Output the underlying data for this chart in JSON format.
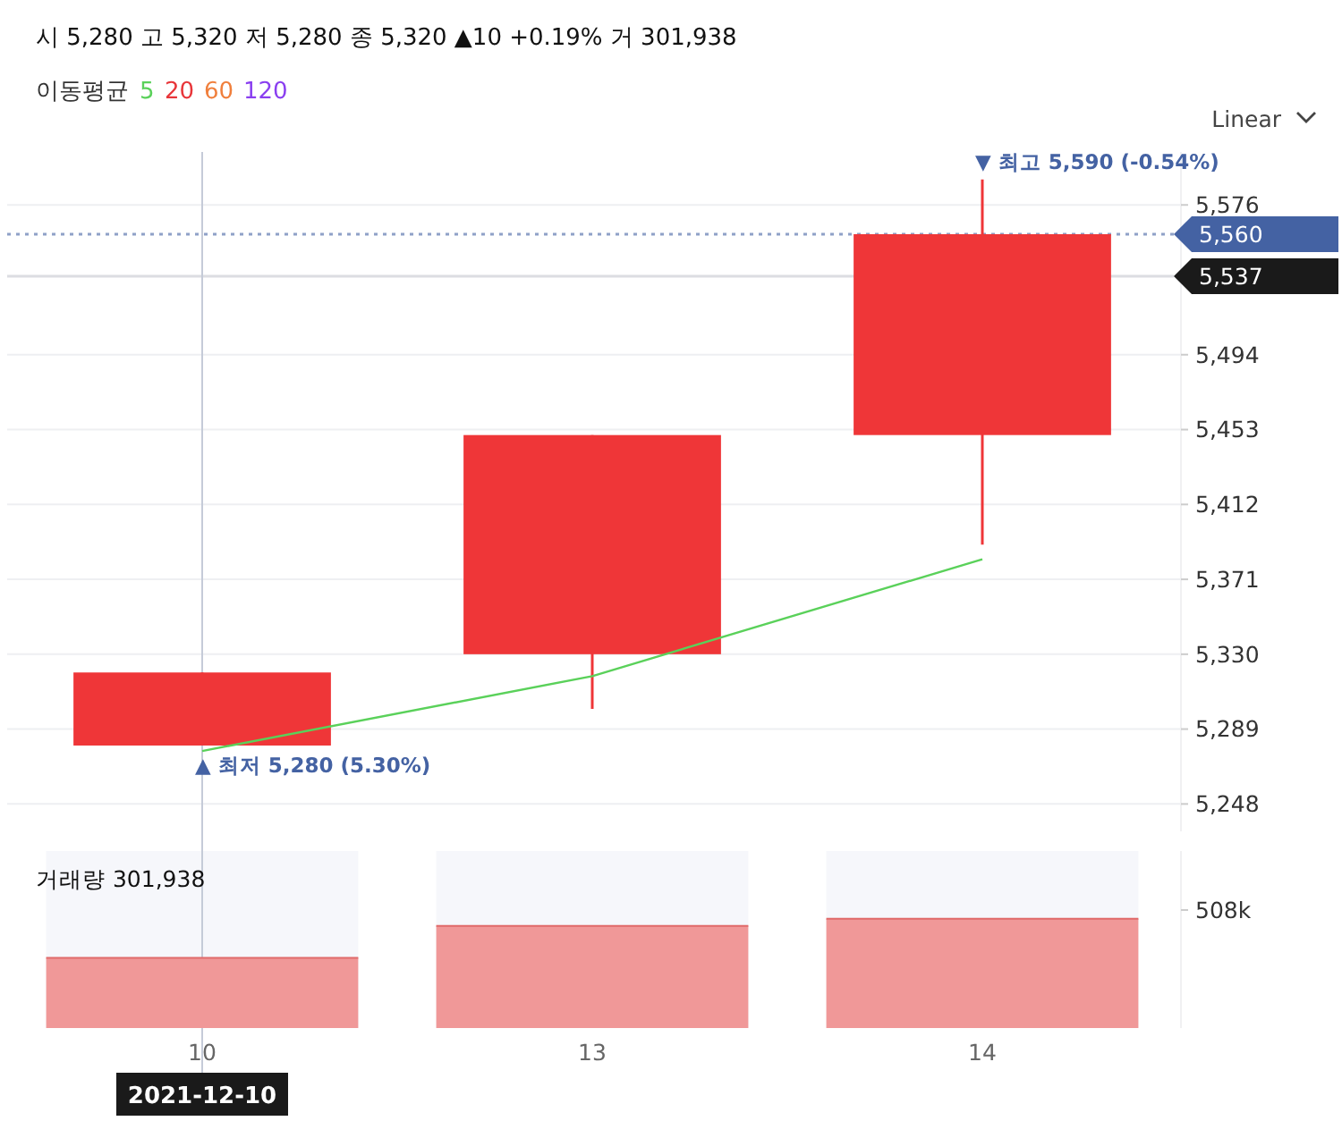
{
  "chart_data": [
    {
      "type": "candlestick",
      "subtitle": "시 5,280 고 5,320 저 5,280 종 5,320 ▲10 +0.19% 거 301,938",
      "categories": [
        "10",
        "13",
        "14"
      ],
      "ohlc": [
        [
          5280,
          5320,
          5280,
          5320
        ],
        [
          5330,
          5450,
          5300,
          5450
        ],
        [
          5450,
          5590,
          5390,
          5560
        ]
      ],
      "color": "#ef3638",
      "series": [
        {
          "type": "line",
          "name": "5",
          "color": "#5ad15a",
          "values": [
            5277,
            5318,
            5382
          ]
        },
        {
          "type": "line",
          "name": "20",
          "color": "#e8363a",
          "values": [
            null,
            null,
            null
          ]
        },
        {
          "type": "line",
          "name": "60",
          "color": "#f07f3c",
          "values": [
            null,
            null,
            null
          ]
        },
        {
          "type": "line",
          "name": "120",
          "color": "#8a3ff0",
          "values": [
            null,
            null,
            null
          ]
        }
      ],
      "legend_title": "이동평균",
      "legend": "top",
      "ylim": [
        5233,
        5605
      ],
      "yticks": [
        {
          "value": 5248,
          "label": "5,248"
        },
        {
          "value": 5289,
          "label": "5,289"
        },
        {
          "value": 5330,
          "label": "5,330"
        },
        {
          "value": 5371,
          "label": "5,371"
        },
        {
          "value": 5412,
          "label": "5,412"
        },
        {
          "value": 5453,
          "label": "5,453"
        },
        {
          "value": 5494,
          "label": "5,494"
        },
        {
          "value": 5576,
          "label": "5,576"
        }
      ],
      "grid": "y",
      "tick_labels": "y",
      "ref_lines": [
        {
          "axis": "y",
          "value": 5560,
          "label": "5,560",
          "color": "#4462a3",
          "line_style": "dotted"
        },
        {
          "axis": "y",
          "value": 5537,
          "label": "5,537",
          "color": "#dcdde2",
          "line_style": "solid"
        },
        {
          "axis": "x",
          "value": "10",
          "label": null,
          "color": "#c5cbd8",
          "line_style": "solid"
        }
      ],
      "annotations": [
        {
          "text": "▼ 최고 5,590 (-0.54%)",
          "x": "14",
          "y": 5590
        },
        {
          "text": "▲ 최저 5,280 (5.30%)",
          "x": "10",
          "y": 5280
        },
        "Linear"
      ]
    },
    {
      "type": "bar",
      "categories": [
        "10",
        "13",
        "14"
      ],
      "values": [
        301938,
        440000,
        470000
      ],
      "color": "#f09898",
      "ylim": [
        0,
        762000
      ],
      "yticks": [
        {
          "value": 508000,
          "label": "508k"
        }
      ],
      "ref_lines": [
        {
          "axis": "x",
          "value": "10",
          "label": "2021-12-10",
          "color": "#c5cbd8",
          "line_style": "solid"
        }
      ],
      "annotations": [
        "거래량 301,938"
      ]
    }
  ]
}
